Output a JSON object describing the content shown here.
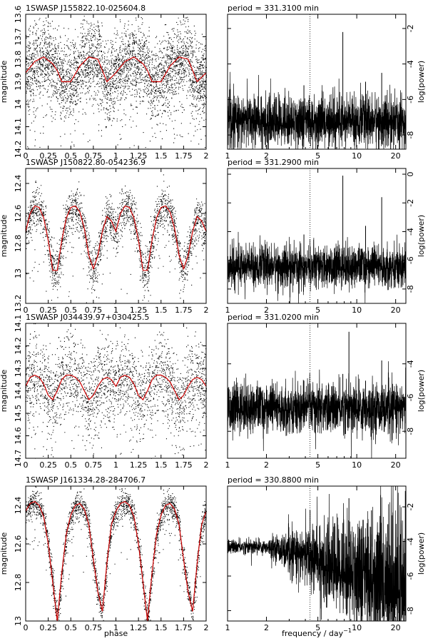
{
  "chart_data": [
    {
      "type": "scatter",
      "title": "1SWASP J155822.10-025604.8",
      "xlabel": "",
      "ylabel": "magnitude",
      "xlim": [
        0,
        2
      ],
      "ylim": [
        14.2,
        13.6
      ],
      "y_inverted": true,
      "xticks": [
        "0",
        "0.25",
        "0.5",
        "0.75",
        "1",
        "1.25",
        "1.5",
        "1.75",
        "2"
      ],
      "yticks": [
        13.6,
        13.7,
        13.8,
        13.9,
        14,
        14.1,
        14.2
      ],
      "series": [
        {
          "role": "points",
          "color": "#000000",
          "mean_mag": 13.84,
          "spread": 0.085
        },
        {
          "role": "binned mean curve",
          "color": "#cc0000",
          "phase": [
            0,
            0.1,
            0.2,
            0.3,
            0.35,
            0.4,
            0.5,
            0.6,
            0.7,
            0.8,
            0.85,
            0.9,
            1.0
          ],
          "magnitude": [
            13.86,
            13.81,
            13.79,
            13.82,
            13.85,
            13.9,
            13.9,
            13.83,
            13.79,
            13.8,
            13.85,
            13.9,
            13.86
          ]
        }
      ],
      "grid": false
    },
    {
      "type": "line",
      "title": "period = 331.3100 min",
      "xlabel": "",
      "ylabel": "log(power)",
      "x_scale": "log",
      "xlim": [
        1,
        24
      ],
      "ylim": [
        -8.8,
        -1.2
      ],
      "xticks": [
        1,
        2,
        5,
        10,
        20
      ],
      "yticks": [
        -2,
        -4,
        -6,
        -8
      ],
      "noise_mean": -7.2,
      "marked_frequency": 4.35,
      "peaks": [
        {
          "frequency": 3.9,
          "logpower": -5.2
        },
        {
          "frequency": 7.8,
          "logpower": -2.2
        },
        {
          "frequency": 11.7,
          "logpower": -5.0
        },
        {
          "frequency": 15.6,
          "logpower": -4.5
        }
      ]
    },
    {
      "type": "scatter",
      "title": "1SWASP J150822.80-054236.9",
      "xlabel": "",
      "ylabel": "magnitude",
      "xlim": [
        0,
        2
      ],
      "ylim": [
        13.2,
        12.3
      ],
      "y_inverted": true,
      "xticks": [
        "0",
        "0.25",
        "0.5",
        "0.75",
        "1",
        "1.25",
        "1.5",
        "1.75",
        "2"
      ],
      "yticks": [
        12.4,
        12.6,
        12.8,
        13,
        13.2
      ],
      "series": [
        {
          "role": "points",
          "color": "#000000",
          "mean_mag": 12.62,
          "spread": 0.07
        },
        {
          "role": "binned mean curve",
          "color": "#cc0000",
          "phase": [
            0,
            0.05,
            0.1,
            0.15,
            0.2,
            0.25,
            0.3,
            0.35,
            0.4,
            0.45,
            0.5,
            0.55,
            0.6,
            0.65,
            0.7,
            0.75,
            0.8,
            0.85,
            0.9,
            0.95,
            1.0
          ],
          "magnitude": [
            12.72,
            12.6,
            12.55,
            12.56,
            12.63,
            12.78,
            12.98,
            12.98,
            12.78,
            12.63,
            12.56,
            12.55,
            12.59,
            12.7,
            12.88,
            12.97,
            12.88,
            12.72,
            12.62,
            12.65,
            12.72
          ]
        }
      ],
      "grid": false
    },
    {
      "type": "line",
      "title": "period = 331.2900 min",
      "xlabel": "",
      "ylabel": "log(power)",
      "x_scale": "log",
      "xlim": [
        1,
        24
      ],
      "ylim": [
        -9,
        0.4
      ],
      "xticks": [
        1,
        2,
        5,
        10,
        20
      ],
      "yticks": [
        0,
        -2,
        -4,
        -6,
        -8
      ],
      "noise_mean": -6.4,
      "marked_frequency": 4.35,
      "peaks": [
        {
          "frequency": 3.9,
          "logpower": -4.2
        },
        {
          "frequency": 7.8,
          "logpower": -0.1
        },
        {
          "frequency": 11.7,
          "logpower": -3.6
        },
        {
          "frequency": 15.6,
          "logpower": -1.6
        }
      ]
    },
    {
      "type": "scatter",
      "title": "1SWASP J034439.97+030425.5",
      "xlabel": "",
      "ylabel": "magnitude",
      "xlim": [
        0,
        2
      ],
      "ylim": [
        14.7,
        14.1
      ],
      "y_inverted": true,
      "xticks": [
        "0",
        "0.25",
        "0.5",
        "0.75",
        "1",
        "1.25",
        "1.5",
        "1.75",
        "2"
      ],
      "yticks": [
        14.1,
        14.2,
        14.3,
        14.4,
        14.5,
        14.6,
        14.7
      ],
      "series": [
        {
          "role": "points",
          "color": "#000000",
          "mean_mag": 14.37,
          "spread": 0.09
        },
        {
          "role": "binned mean curve",
          "color": "#cc0000",
          "phase": [
            0,
            0.05,
            0.1,
            0.15,
            0.2,
            0.25,
            0.3,
            0.35,
            0.4,
            0.45,
            0.5,
            0.55,
            0.6,
            0.65,
            0.7,
            0.75,
            0.8,
            0.85,
            0.9,
            0.95,
            1.0
          ],
          "magnitude": [
            14.38,
            14.34,
            14.33,
            14.34,
            14.37,
            14.42,
            14.44,
            14.4,
            14.35,
            14.33,
            14.33,
            14.34,
            14.36,
            14.4,
            14.44,
            14.42,
            14.38,
            14.35,
            14.34,
            14.35,
            14.38
          ]
        }
      ],
      "grid": false
    },
    {
      "type": "line",
      "title": "period = 331.0200 min",
      "xlabel": "",
      "ylabel": "log(power)",
      "x_scale": "log",
      "xlim": [
        1,
        24
      ],
      "ylim": [
        -9.6,
        -1.6
      ],
      "xticks": [
        1,
        2,
        5,
        10,
        20
      ],
      "yticks": [
        -4,
        -6,
        -8
      ],
      "noise_mean": -6.6,
      "marked_frequency": 4.35,
      "peaks": [
        {
          "frequency": 3.9,
          "logpower": -5.0
        },
        {
          "frequency": 7.8,
          "logpower": -4.6
        },
        {
          "frequency": 8.7,
          "logpower": -2.1
        },
        {
          "frequency": 11.7,
          "logpower": -5.0
        },
        {
          "frequency": 15.6,
          "logpower": -3.8
        }
      ]
    },
    {
      "type": "scatter",
      "title": "1SWASP J161334.28-284706.7",
      "xlabel": "phase",
      "ylabel": "magnitude",
      "xlim": [
        0,
        2
      ],
      "ylim": [
        13.0,
        12.3
      ],
      "y_inverted": true,
      "xticks": [
        "0",
        "0.25",
        "0.5",
        "0.75",
        "1",
        "1.25",
        "1.5",
        "1.75",
        "2"
      ],
      "yticks": [
        12.4,
        12.6,
        12.8,
        13
      ],
      "series": [
        {
          "role": "points",
          "color": "#000000",
          "mean_mag": 12.52,
          "spread": 0.035
        },
        {
          "role": "binned mean curve",
          "color": "#cc0000",
          "phase": [
            0,
            0.05,
            0.1,
            0.15,
            0.2,
            0.25,
            0.3,
            0.35,
            0.4,
            0.45,
            0.5,
            0.55,
            0.6,
            0.65,
            0.7,
            0.75,
            0.8,
            0.85,
            0.9,
            0.95,
            1.0
          ],
          "magnitude": [
            12.43,
            12.39,
            12.38,
            12.4,
            12.46,
            12.6,
            12.8,
            13.0,
            12.75,
            12.55,
            12.45,
            12.4,
            12.39,
            12.42,
            12.5,
            12.68,
            12.85,
            12.95,
            12.7,
            12.5,
            12.43
          ]
        }
      ],
      "grid": false
    },
    {
      "type": "line",
      "title": "period = 330.8800 min",
      "xlabel": "frequency / day",
      "xlabel_superscript": "−1",
      "ylabel": "log(power)",
      "x_scale": "log",
      "xlim": [
        1,
        24
      ],
      "ylim": [
        -8.6,
        -0.8
      ],
      "xticks": [
        1,
        2,
        5,
        10,
        20
      ],
      "yticks": [
        -2,
        -4,
        -6,
        -8
      ],
      "noise_mean": -4.3,
      "marked_frequency": 4.35,
      "peaks": [
        {
          "frequency": 4.35,
          "logpower": -2.2
        },
        {
          "frequency": 8.7,
          "logpower": -1.5
        },
        {
          "frequency": 13.0,
          "logpower": -2.2
        },
        {
          "frequency": 17.4,
          "logpower": -3.0
        },
        {
          "frequency": 21.7,
          "logpower": -3.6
        }
      ]
    }
  ]
}
